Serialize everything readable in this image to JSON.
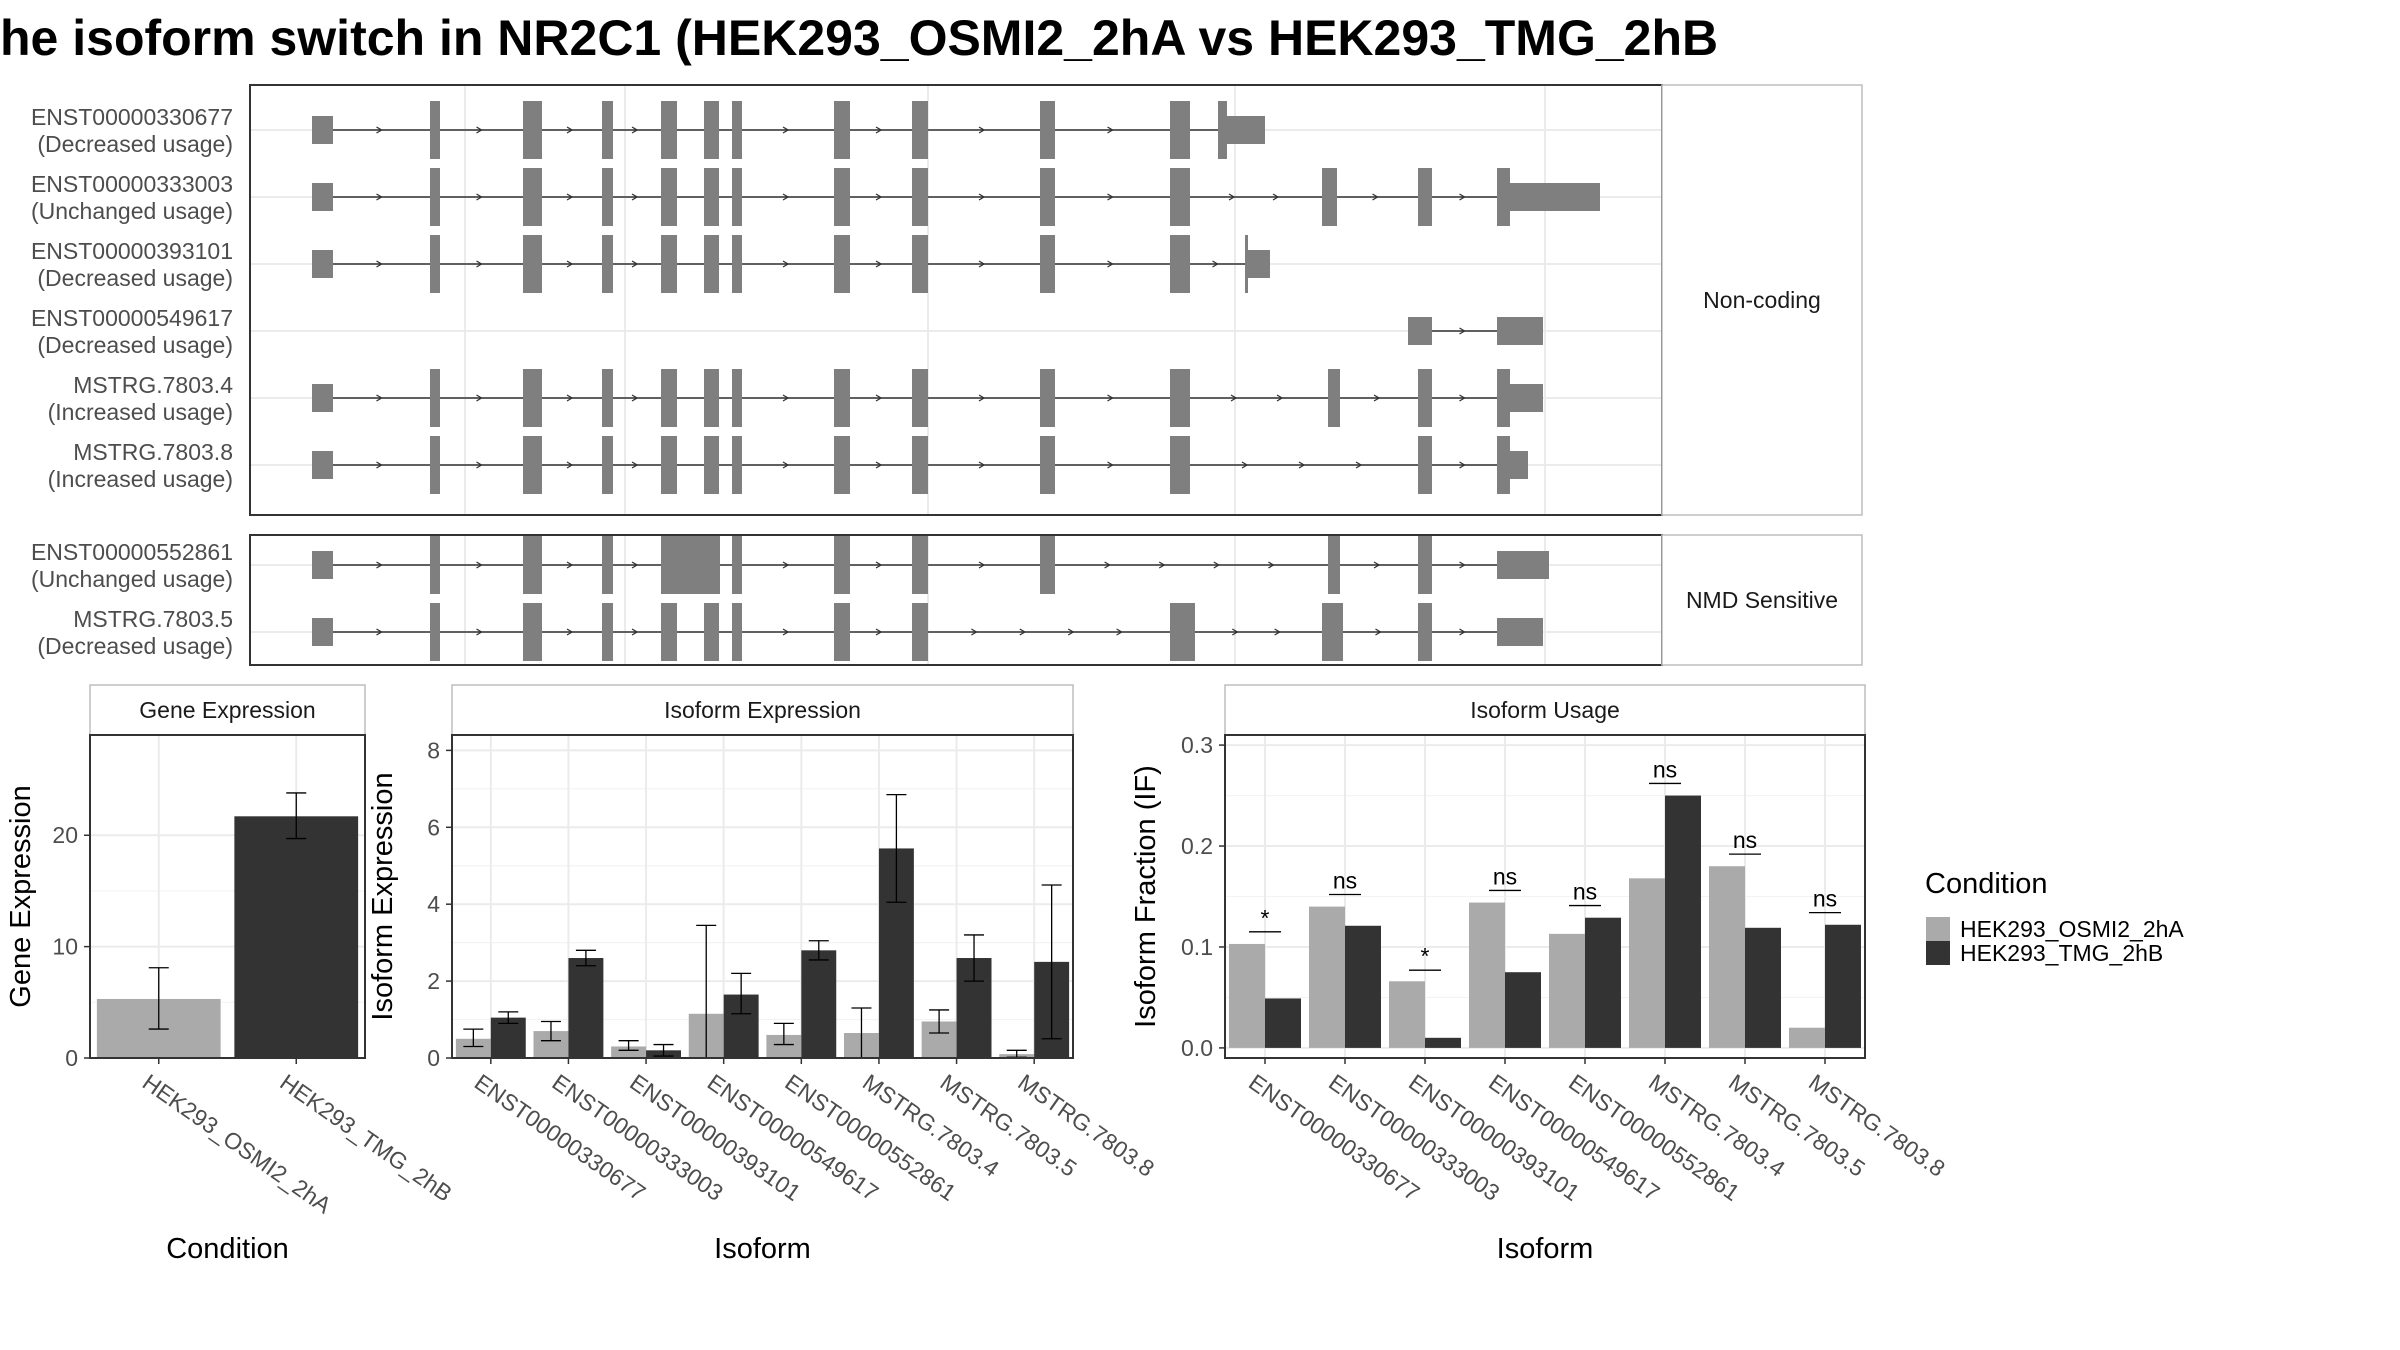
{
  "title": "he isoform switch in NR2C1 (HEK293_OSMI2_2hA vs HEK293_TMG_2hB",
  "colors": {
    "exon": "#7f7f7f",
    "cond1": "#aaaaaa",
    "cond2": "#333333",
    "panel_border": "#333333",
    "strip_bg": "#ffffff",
    "grid": "#ebebeb"
  },
  "structure": {
    "groups": [
      {
        "label": "Non-coding",
        "isoforms": [
          {
            "id": "ENST00000330677",
            "usage": "(Decreased usage)"
          },
          {
            "id": "ENST00000333003",
            "usage": "(Unchanged usage)"
          },
          {
            "id": "ENST00000393101",
            "usage": "(Decreased usage)"
          },
          {
            "id": "ENST00000549617",
            "usage": "(Decreased usage)"
          },
          {
            "id": "MSTRG.7803.4",
            "usage": "(Increased usage)"
          },
          {
            "id": "MSTRG.7803.8",
            "usage": "(Increased usage)"
          }
        ]
      },
      {
        "label": "NMD Sensitive",
        "isoforms": [
          {
            "id": "ENST00000552861",
            "usage": "(Unchanged usage)"
          },
          {
            "id": "MSTRG.7803.5",
            "usage": "(Decreased usage)"
          }
        ]
      }
    ]
  },
  "legend": {
    "title": "Condition",
    "items": [
      "HEK293_OSMI2_2hA",
      "HEK293_TMG_2hB"
    ]
  },
  "chart_data": [
    {
      "type": "bar",
      "strip": "Gene Expression",
      "xlabel": "Condition",
      "ylabel": "Gene Expression",
      "ylim": [
        0,
        29
      ],
      "yticks": [
        0,
        10,
        20
      ],
      "categories": [
        "HEK293_OSMI2_2hA",
        "HEK293_TMG_2hB"
      ],
      "values": [
        5.3,
        21.7
      ],
      "error": [
        [
          2.6,
          8.1
        ],
        [
          19.7,
          23.8
        ]
      ]
    },
    {
      "type": "bar",
      "strip": "Isoform Expression",
      "xlabel": "Isoform",
      "ylabel": "Isoform Expression",
      "ylim": [
        0,
        8.4
      ],
      "yticks": [
        0,
        2,
        4,
        6,
        8
      ],
      "categories": [
        "ENST00000330677",
        "ENST00000333003",
        "ENST00000393101",
        "ENST00000549617",
        "ENST00000552861",
        "MSTRG.7803.4",
        "MSTRG.7803.5",
        "MSTRG.7803.8"
      ],
      "series": [
        {
          "name": "HEK293_OSMI2_2hA",
          "values": [
            0.5,
            0.7,
            0.3,
            1.15,
            0.6,
            0.65,
            0.95,
            0.1
          ],
          "error": [
            [
              0.3,
              0.75
            ],
            [
              0.45,
              0.95
            ],
            [
              0.2,
              0.45
            ],
            [
              0.0,
              3.45
            ],
            [
              0.35,
              0.9
            ],
            [
              0.0,
              1.3
            ],
            [
              0.65,
              1.25
            ],
            [
              0.02,
              0.2
            ]
          ]
        },
        {
          "name": "HEK293_TMG_2hB",
          "values": [
            1.05,
            2.6,
            0.2,
            1.65,
            2.8,
            5.45,
            2.6,
            2.5
          ],
          "error": [
            [
              0.9,
              1.2
            ],
            [
              2.4,
              2.8
            ],
            [
              0.05,
              0.35
            ],
            [
              1.15,
              2.2
            ],
            [
              2.55,
              3.05
            ],
            [
              4.05,
              6.85
            ],
            [
              2.0,
              3.2
            ],
            [
              0.5,
              4.5
            ]
          ]
        }
      ]
    },
    {
      "type": "bar",
      "strip": "Isoform Usage",
      "xlabel": "Isoform",
      "ylabel": "Isoform Fraction (IF)",
      "ylim": [
        -0.01,
        0.31
      ],
      "yticks": [
        0.0,
        0.1,
        0.2,
        0.3
      ],
      "ytick_labels": [
        "0.0",
        "0.1",
        "0.2",
        "0.3"
      ],
      "categories": [
        "ENST00000330677",
        "ENST00000333003",
        "ENST00000393101",
        "ENST00000549617",
        "ENST00000552861",
        "MSTRG.7803.4",
        "MSTRG.7803.5",
        "MSTRG.7803.8"
      ],
      "series": [
        {
          "name": "HEK293_OSMI2_2hA",
          "values": [
            0.103,
            0.14,
            0.066,
            0.144,
            0.113,
            0.168,
            0.18,
            0.02
          ]
        },
        {
          "name": "HEK293_TMG_2hB",
          "values": [
            0.049,
            0.121,
            0.01,
            0.075,
            0.129,
            0.25,
            0.119,
            0.122
          ]
        }
      ],
      "significance": [
        "*",
        "ns",
        "*",
        "ns",
        "ns",
        "ns",
        "ns",
        "ns"
      ],
      "significance_y": [
        0.115,
        0.152,
        0.077,
        0.156,
        0.141,
        0.262,
        0.192,
        0.134
      ]
    }
  ]
}
